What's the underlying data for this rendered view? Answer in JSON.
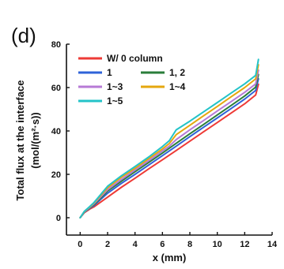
{
  "panel_label": "(d)",
  "chart_data": {
    "type": "line",
    "xlabel": "x (mm)",
    "ylabel_line1": "Total flux at the interface",
    "ylabel_line2": "(mol/(m²·s))",
    "xlim": [
      -1,
      14
    ],
    "ylim": [
      -8,
      80
    ],
    "x_ticks": [
      0,
      2,
      4,
      6,
      8,
      10,
      12,
      14
    ],
    "y_ticks": [
      0,
      20,
      40,
      60,
      80
    ],
    "grid": false,
    "legend_position": "top-left",
    "series": [
      {
        "name": "W/ 0 column",
        "color": "#ee3a36",
        "points": [
          [
            0,
            0
          ],
          [
            0.3,
            2.3
          ],
          [
            0.7,
            4
          ],
          [
            1,
            5
          ],
          [
            2,
            9.5
          ],
          [
            3,
            14
          ],
          [
            4,
            18.2
          ],
          [
            5,
            22.5
          ],
          [
            6,
            26.7
          ],
          [
            7,
            31
          ],
          [
            8,
            35.3
          ],
          [
            9,
            39.6
          ],
          [
            10,
            43.9
          ],
          [
            11,
            48.2
          ],
          [
            12,
            52.5
          ],
          [
            12.8,
            56.6
          ],
          [
            13,
            61.5
          ]
        ]
      },
      {
        "name": "1",
        "color": "#2f63d8",
        "points": [
          [
            0,
            0
          ],
          [
            0.3,
            2.5
          ],
          [
            0.7,
            4.4
          ],
          [
            1,
            5.6
          ],
          [
            2,
            11.3
          ],
          [
            3,
            15.8
          ],
          [
            4,
            20
          ],
          [
            5,
            24.3
          ],
          [
            6,
            28.6
          ],
          [
            7,
            33
          ],
          [
            8,
            37.4
          ],
          [
            9,
            41.7
          ],
          [
            10,
            46
          ],
          [
            11,
            50.3
          ],
          [
            12,
            54.7
          ],
          [
            12.8,
            58.7
          ],
          [
            13,
            64
          ]
        ]
      },
      {
        "name": "1, 2",
        "color": "#2a7d3a",
        "points": [
          [
            0,
            0
          ],
          [
            0.3,
            2.6
          ],
          [
            0.7,
            4.6
          ],
          [
            1,
            6
          ],
          [
            2,
            12.3
          ],
          [
            3,
            16.8
          ],
          [
            4,
            21.2
          ],
          [
            5,
            25.5
          ],
          [
            6,
            29.8
          ],
          [
            7,
            34.3
          ],
          [
            8,
            38.7
          ],
          [
            9,
            43
          ],
          [
            10,
            47.4
          ],
          [
            11,
            51.7
          ],
          [
            12,
            56.1
          ],
          [
            12.8,
            60.2
          ],
          [
            13,
            66
          ]
        ]
      },
      {
        "name": "1~3",
        "color": "#b77ad6",
        "points": [
          [
            0,
            0
          ],
          [
            0.3,
            2.7
          ],
          [
            0.7,
            4.8
          ],
          [
            1,
            6.4
          ],
          [
            2,
            12.9
          ],
          [
            3,
            17.6
          ],
          [
            4,
            22
          ],
          [
            5,
            26.3
          ],
          [
            6,
            30.8
          ],
          [
            6.5,
            33
          ],
          [
            7,
            36
          ],
          [
            8,
            40.5
          ],
          [
            9,
            44.8
          ],
          [
            10,
            49.2
          ],
          [
            11,
            53.5
          ],
          [
            12,
            57.8
          ],
          [
            12.8,
            61.7
          ],
          [
            13,
            68
          ]
        ]
      },
      {
        "name": "1~4",
        "color": "#e5a70e",
        "points": [
          [
            0,
            0
          ],
          [
            0.3,
            2.8
          ],
          [
            0.7,
            5
          ],
          [
            1,
            6.8
          ],
          [
            2,
            13.8
          ],
          [
            3,
            18.6
          ],
          [
            4,
            22.8
          ],
          [
            5,
            27.2
          ],
          [
            6,
            31.7
          ],
          [
            6.5,
            34.2
          ],
          [
            7,
            38.3
          ],
          [
            8,
            42.6
          ],
          [
            9,
            47
          ],
          [
            10,
            51.3
          ],
          [
            11,
            55.7
          ],
          [
            12,
            60
          ],
          [
            12.8,
            64
          ],
          [
            13,
            70.5
          ]
        ]
      },
      {
        "name": "1~5",
        "color": "#23c3c8",
        "points": [
          [
            0,
            0
          ],
          [
            0.3,
            2.9
          ],
          [
            0.7,
            5.2
          ],
          [
            1,
            7
          ],
          [
            2,
            14.5
          ],
          [
            3,
            19.3
          ],
          [
            4,
            23.6
          ],
          [
            5,
            28
          ],
          [
            6,
            32.8
          ],
          [
            6.5,
            35.5
          ],
          [
            7,
            40.5
          ],
          [
            8,
            44.5
          ],
          [
            9,
            48.8
          ],
          [
            10,
            53.1
          ],
          [
            11,
            57.4
          ],
          [
            12,
            61.7
          ],
          [
            12.8,
            65.6
          ],
          [
            13,
            73
          ]
        ]
      }
    ]
  }
}
